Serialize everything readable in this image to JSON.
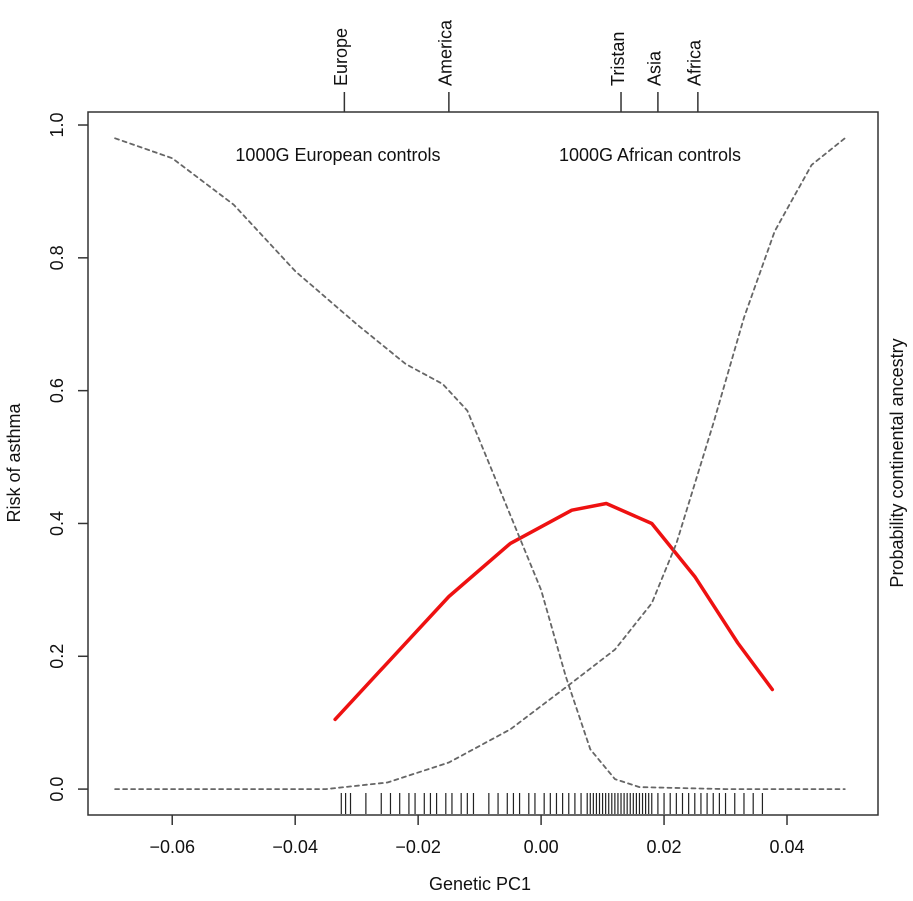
{
  "chart_data": {
    "type": "line",
    "x_label": "Genetic PC1",
    "y_label": "Risk of asthma",
    "y2_label": "Probability continental ancestry",
    "annotations": [
      "1000G European controls",
      "1000G African controls"
    ],
    "xlim": [
      -0.0737,
      0.0548
    ],
    "ylim": [
      -0.039,
      1.0196
    ],
    "xticks": [
      {
        "value": -0.06,
        "label": "−0.06"
      },
      {
        "value": -0.04,
        "label": "−0.04"
      },
      {
        "value": -0.02,
        "label": "−0.02"
      },
      {
        "value": 0,
        "label": "0.00"
      },
      0.02,
      0.04
    ],
    "yticks": [
      {
        "value": 0,
        "label": "0.0"
      },
      0.2,
      0.4,
      0.6,
      0.8,
      {
        "value": 1,
        "label": "1.0"
      }
    ],
    "top_ticks": [
      {
        "value": -0.032,
        "label": "Europe"
      },
      {
        "value": -0.015,
        "label": "America"
      },
      {
        "value": 0.013,
        "label": "Tristan"
      },
      {
        "value": 0.019,
        "label": "Asia"
      },
      {
        "value": 0.0255,
        "label": "Africa"
      }
    ],
    "series": [
      {
        "color": "#ee1111",
        "dash": false,
        "x": [
          -0.0335,
          -0.025,
          -0.015,
          -0.005,
          0.005,
          0.0106,
          0.018,
          0.025,
          0.032,
          0.0376
        ],
        "values": [
          0.105,
          0.19,
          0.29,
          0.37,
          0.42,
          0.43,
          0.4,
          0.32,
          0.22,
          0.15
        ]
      },
      {
        "color": "#666666",
        "dash": true,
        "x": [
          -0.0693,
          -0.06,
          -0.05,
          -0.04,
          -0.03,
          -0.022,
          -0.016,
          -0.012,
          -0.008,
          -0.004,
          0,
          0.004,
          0.008,
          0.012,
          0.016,
          0.03,
          0.0494
        ],
        "values": [
          0.98,
          0.95,
          0.88,
          0.78,
          0.7,
          0.64,
          0.61,
          0.57,
          0.48,
          0.39,
          0.3,
          0.17,
          0.06,
          0.015,
          0.003,
          0,
          0
        ]
      },
      {
        "color": "#666666",
        "dash": true,
        "x": [
          -0.0693,
          -0.035,
          -0.025,
          -0.015,
          -0.005,
          0.005,
          0.012,
          0.018,
          0.022,
          0.028,
          0.033,
          0.038,
          0.044,
          0.0494
        ],
        "values": [
          0,
          0,
          0.01,
          0.04,
          0.09,
          0.16,
          0.21,
          0.28,
          0.37,
          0.55,
          0.71,
          0.84,
          0.94,
          0.98
        ]
      }
    ],
    "rug": [
      -0.0325,
      -0.0318,
      -0.031,
      -0.0285,
      -0.026,
      -0.0245,
      -0.023,
      -0.0215,
      -0.0205,
      -0.019,
      -0.018,
      -0.017,
      -0.0155,
      -0.0145,
      -0.013,
      -0.012,
      -0.011,
      -0.0085,
      -0.007,
      -0.0055,
      -0.0045,
      -0.0035,
      -0.002,
      -0.001,
      0.0005,
      0.0015,
      0.0025,
      0.0035,
      0.0045,
      0.0055,
      0.0065,
      0.0075,
      0.008,
      0.0085,
      0.009,
      0.0095,
      0.01,
      0.0105,
      0.011,
      0.0115,
      0.012,
      0.0125,
      0.013,
      0.0135,
      0.014,
      0.0145,
      0.015,
      0.0155,
      0.016,
      0.0165,
      0.017,
      0.0175,
      0.018,
      0.019,
      0.02,
      0.021,
      0.022,
      0.023,
      0.024,
      0.025,
      0.026,
      0.027,
      0.028,
      0.029,
      0.03,
      0.0315,
      0.033,
      0.0345,
      0.036
    ]
  }
}
